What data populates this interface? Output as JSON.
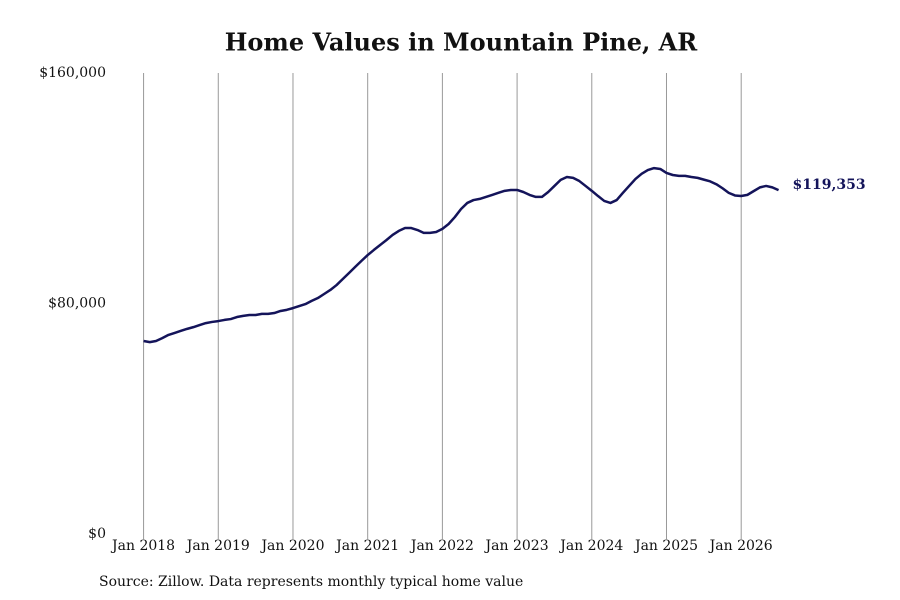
{
  "chart_data": {
    "type": "line",
    "title": "Home Values in Mountain Pine, AR",
    "source": "Source: Zillow. Data represents monthly typical home value",
    "color": "#14145a",
    "grid": "x",
    "x": [
      "2018-01",
      "2018-02",
      "2018-03",
      "2018-04",
      "2018-05",
      "2018-06",
      "2018-07",
      "2018-08",
      "2018-09",
      "2018-10",
      "2018-11",
      "2018-12",
      "2019-01",
      "2019-02",
      "2019-03",
      "2019-04",
      "2019-05",
      "2019-06",
      "2019-07",
      "2019-08",
      "2019-09",
      "2019-10",
      "2019-11",
      "2019-12",
      "2020-01",
      "2020-02",
      "2020-03",
      "2020-04",
      "2020-05",
      "2020-06",
      "2020-07",
      "2020-08",
      "2020-09",
      "2020-10",
      "2020-11",
      "2020-12",
      "2021-01",
      "2021-02",
      "2021-03",
      "2021-04",
      "2021-05",
      "2021-06",
      "2021-07",
      "2021-08",
      "2021-09",
      "2021-10",
      "2021-11",
      "2021-12",
      "2022-01",
      "2022-02",
      "2022-03",
      "2022-04",
      "2022-05",
      "2022-06",
      "2022-07",
      "2022-08",
      "2022-09",
      "2022-10",
      "2022-11",
      "2022-12",
      "2023-01",
      "2023-02",
      "2023-03",
      "2023-04",
      "2023-05",
      "2023-06",
      "2023-07",
      "2023-08",
      "2023-09",
      "2023-10",
      "2023-11",
      "2023-12",
      "2024-01",
      "2024-02",
      "2024-03",
      "2024-04",
      "2024-05",
      "2024-06",
      "2024-07",
      "2024-08",
      "2024-09",
      "2024-10",
      "2024-11",
      "2024-12",
      "2025-01",
      "2025-02",
      "2025-03",
      "2025-04",
      "2025-05",
      "2025-06",
      "2025-07",
      "2025-08",
      "2025-09",
      "2025-10",
      "2025-11",
      "2025-12",
      "2026-01",
      "2026-02",
      "2026-03",
      "2026-04",
      "2026-05",
      "2026-06",
      "2026-07"
    ],
    "values": [
      67000,
      66600,
      67000,
      68000,
      69100,
      69800,
      70500,
      71200,
      71800,
      72500,
      73200,
      73600,
      73900,
      74300,
      74600,
      75300,
      75700,
      76000,
      76000,
      76400,
      76400,
      76700,
      77400,
      77800,
      78400,
      79100,
      79800,
      80900,
      81900,
      83300,
      84700,
      86400,
      88500,
      90600,
      92700,
      94800,
      96800,
      98600,
      100300,
      102000,
      103800,
      105200,
      106200,
      106200,
      105500,
      104500,
      104500,
      104800,
      105900,
      107600,
      110000,
      112800,
      114900,
      115900,
      116300,
      117000,
      117700,
      118400,
      119100,
      119400,
      119400,
      118700,
      117700,
      117000,
      117000,
      118700,
      120800,
      122900,
      123900,
      123600,
      122500,
      120800,
      119100,
      117300,
      115600,
      114900,
      115900,
      118400,
      120800,
      123200,
      125000,
      126300,
      127000,
      126700,
      125300,
      124600,
      124300,
      124300,
      123900,
      123600,
      123000,
      122400,
      121400,
      120000,
      118400,
      117500,
      117300,
      117700,
      119000,
      120300,
      120800,
      120300,
      119353
    ],
    "value_labels": [
      null,
      null,
      null,
      null,
      null,
      null,
      null,
      null,
      null,
      null,
      null,
      null,
      null,
      null,
      null,
      null,
      null,
      null,
      null,
      null,
      null,
      null,
      null,
      null,
      null,
      null,
      null,
      null,
      null,
      null,
      null,
      null,
      null,
      null,
      null,
      null,
      null,
      null,
      null,
      null,
      null,
      null,
      null,
      null,
      null,
      null,
      null,
      null,
      null,
      null,
      null,
      null,
      null,
      null,
      null,
      null,
      null,
      null,
      null,
      null,
      null,
      null,
      null,
      null,
      null,
      null,
      null,
      null,
      null,
      null,
      null,
      null,
      null,
      null,
      null,
      null,
      null,
      null,
      null,
      null,
      null,
      null,
      null,
      null,
      null,
      null,
      null,
      null,
      null,
      null,
      null,
      null,
      null,
      null,
      null,
      null,
      null,
      null,
      null,
      null,
      null,
      null,
      "$119,353"
    ],
    "xlim": [
      "2017-06",
      "2026-09"
    ],
    "xticks": [
      {
        "value": "2018-01",
        "label": "Jan 2018"
      },
      {
        "value": "2019-01",
        "label": "Jan 2019"
      },
      {
        "value": "2020-01",
        "label": "Jan 2020"
      },
      {
        "value": "2021-01",
        "label": "Jan 2021"
      },
      {
        "value": "2022-01",
        "label": "Jan 2022"
      },
      {
        "value": "2023-01",
        "label": "Jan 2023"
      },
      {
        "value": "2024-01",
        "label": "Jan 2024"
      },
      {
        "value": "2025-01",
        "label": "Jan 2025"
      },
      {
        "value": "2026-01",
        "label": "Jan 2026"
      }
    ],
    "ylim": [
      0,
      160000
    ],
    "yticks": [
      {
        "value": 0,
        "label": "$0"
      },
      {
        "value": 80000,
        "label": "$80,000"
      },
      {
        "value": 160000,
        "label": "$160,000"
      }
    ]
  }
}
